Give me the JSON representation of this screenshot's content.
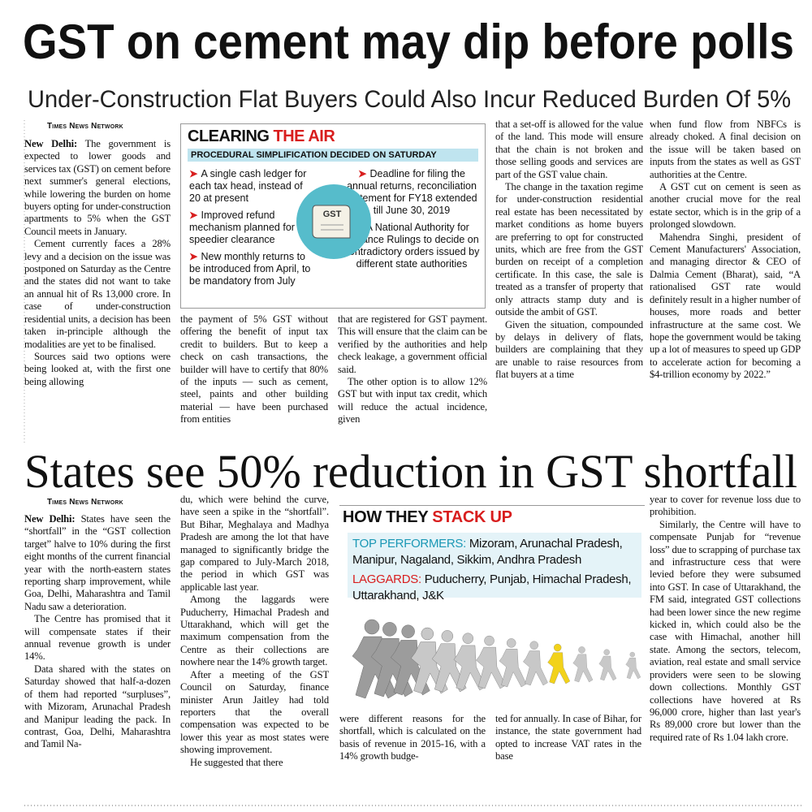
{
  "article1": {
    "headline": "GST on cement may dip before polls",
    "subheadline": "Under-Construction Flat Buyers Could Also Incur Reduced Burden Of 5%",
    "byline": "Times News Network",
    "dateline": "New Delhi:",
    "columns": [
      {
        "paragraphs": [
          "The government is expected to lower goods and services tax (GST) on cement before next summer's general elections, while lowering the burden on home buyers opting for under-construction apartments to 5% when the GST Council meets in January.",
          "Cement currently faces a 28% levy and a decision on the issue was postponed on Saturday as the Centre and the states did not want to take an annual hit of Rs 13,000 crore. In case of under-construction residential units, a decision has been taken in-principle although the modalities are yet to be finalised.",
          "Sources said two options were being looked at, with the first one being allowing"
        ]
      },
      {
        "paragraphs": [
          "the payment of 5% GST without offering the benefit of input tax credit to builders. But to keep a check on cash transactions, the builder will have to certify that 80% of the inputs — such as cement, steel, paints and other building material — have been purchased from entities"
        ]
      },
      {
        "paragraphs": [
          "that are registered for GST payment. This will ensure that the claim can be verified by the authorities and help check leakage, a government official said.",
          "The other option is to allow 12% GST but with input tax credit, which will reduce the actual incidence, given"
        ]
      },
      {
        "paragraphs": [
          "that a set-off is allowed for the value of the land. This mode will ensure that the chain is not broken and those selling goods and services are part of the GST value chain.",
          "The change in the taxation regime for under-construction residential real estate has been necessitated by market conditions as home buyers are preferring to opt for constructed units, which are free from the GST burden on receipt of a completion certificate. In this case, the sale is treated as a transfer of property that only attracts stamp duty and is outside the ambit of GST.",
          "Given the situation, compounded by delays in delivery of flats, builders are complaining that they are unable to raise resources from flat buyers at a time"
        ]
      },
      {
        "paragraphs": [
          "when fund flow from NBFCs is already choked. A final decision on the issue will be taken based on inputs from the states as well as GST authorities at the Centre.",
          "A GST cut on cement is seen as another crucial move for the real estate sector, which is in the grip of a prolonged slowdown.",
          "Mahendra Singhi, president of Cement Manufacturers' Association, and managing director & CEO of Dalmia Cement (Bharat), said, “A rationalised GST rate would definitely result in a higher number of houses, more roads and better infrastructure at the same cost. We hope the government would be taking up a lot of measures to speed up GDP to accelerate action for becoming a $4-trillion economy by 2022.”"
        ]
      }
    ],
    "sidebar": {
      "title_parts": [
        "CLEARING",
        "THE AIR"
      ],
      "subtitle": "PROCEDURAL SIMPLIFICATION DECIDED ON SATURDAY",
      "icon_label": "GST",
      "left_items": [
        "A single cash ledger for each tax head, instead of 20 at present",
        "Improved refund mechanism planned for speedier clearance",
        "New monthly returns to be introduced from April, to be mandatory from July"
      ],
      "right_items": [
        "Deadline for filing the annual returns, reconciliation statement for FY18 extended till June 30, 2019",
        "A National Authority for Advance Rulings to decide on contradictory orders issued by different state authorities"
      ]
    }
  },
  "article2": {
    "headline": "States see 50% reduction in GST shortfall",
    "byline": "Times News Network",
    "dateline": "New Delhi:",
    "columns": [
      {
        "paragraphs": [
          "States have seen the “shortfall” in the “GST collection target” halve to 10% during the first eight months of the current financial year with the north-eastern states reporting sharp improvement, while Goa, Delhi, Maharashtra and Tamil Nadu saw a deterioration.",
          "The Centre has promised that it will compensate states if their annual revenue growth is under 14%.",
          "Data shared with the states on Saturday showed that half-a-dozen of them had reported “surpluses”, with Mizoram, Arunachal Pradesh and Manipur leading the pack. In contrast, Goa, Delhi, Maharashtra and Tamil Na-"
        ]
      },
      {
        "paragraphs": [
          "du, which were behind the curve, have seen a spike in the “shortfall”. But Bihar, Meghalaya and Madhya Pradesh are among the lot that have managed to significantly bridge the gap compared to July-March 2018, the period in which GST was applicable last year.",
          "Among the laggards were Puducherry, Himachal Pradesh and Uttarakhand, which will get the maximum compensation from the Centre as their collections are nowhere near the 14% growth target.",
          "After a meeting of the GST Council on Saturday, finance minister Arun Jaitley had told reporters that the overall compensation was expected to be lower this year as most states were showing improvement.",
          "He suggested that there"
        ]
      },
      {
        "paragraphs": [
          "were different reasons for the shortfall, which is calculated on the basis of revenue in 2015-16, with a 14% growth budge-"
        ]
      },
      {
        "paragraphs": [
          "ted for annually. In case of Bihar, for instance, the state government had opted to increase VAT rates in the base"
        ]
      },
      {
        "paragraphs": [
          "year to cover for revenue loss due to prohibition.",
          "Similarly, the Centre will have to compensate Punjab for “revenue loss” due to scrapping of purchase tax and infrastructure cess that were levied before they were subsumed into GST. In case of Uttarakhand, the FM said, integrated GST collections had been lower since the new regime kicked in, which could also be the case with Himachal, another hill state. Among the sectors, telecom, aviation, real estate and small service providers were seen to be slowing down collections. Monthly GST collections have hovered at Rs 96,000 crore, higher than last year's Rs 89,000 crore but lower than the required rate of Rs 1.04 lakh crore."
        ]
      }
    ],
    "sidebar": {
      "title_parts": [
        "HOW THEY",
        "STACK UP"
      ],
      "top_label": "TOP PERFORMERS:",
      "top_text": "Mizoram, Arunachal Pradesh, Manipur, Nagaland, Sikkim, Andhra Pradesh",
      "laggard_label": "LAGGARDS:",
      "laggard_text": "Puducherry, Punjab, Himachal Pradesh, Uttarakhand, J&K"
    }
  }
}
